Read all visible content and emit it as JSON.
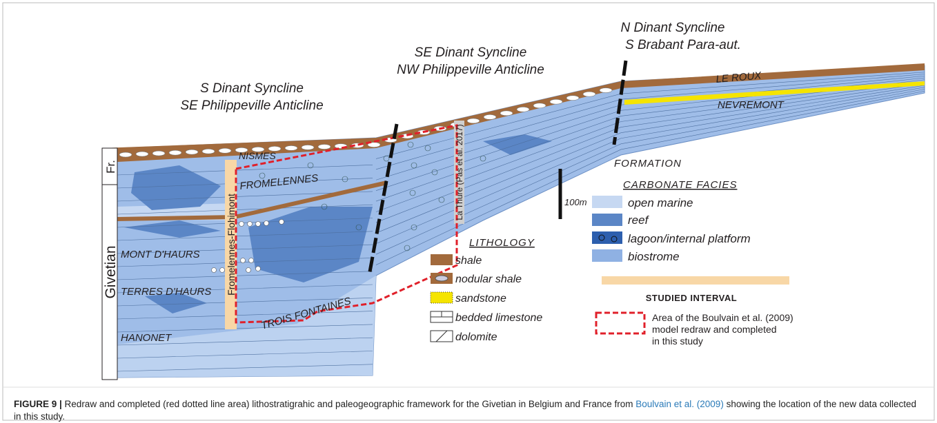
{
  "regions": [
    {
      "line1": "S Dinant Syncline",
      "line2": "SE Philippeville Anticline"
    },
    {
      "line1": "SE Dinant Syncline",
      "line2": "NW Philippeville Anticline"
    },
    {
      "line1": "N Dinant Syncline",
      "line2": "S Brabant Para-aut."
    }
  ],
  "stages": [
    "Fr.",
    "Givetian"
  ],
  "formations": [
    "NISMES",
    "FROMELENNES",
    "MONT D'HAURS",
    "TERRES D'HAURS",
    "HANONET",
    "TROIS FONTAINES",
    "LE ROUX",
    "NEVREMONT"
  ],
  "sections": [
    "Fromelennes-Flohimont",
    "La Thure (Pas et al. 2017)"
  ],
  "scale": "100m",
  "legend": {
    "formation": "FORMATION",
    "facies_title": "CARBONATE FACIES",
    "facies": [
      "open marine",
      "reef",
      "lagoon/internal platform",
      "biostrome"
    ],
    "lithology_title": "LITHOLOGY",
    "lithology": [
      "shale",
      "nodular shale",
      "sandstone",
      "bedded limestone",
      "dolomite"
    ],
    "studied": "STUDIED INTERVAL",
    "area": [
      "Area of the Boulvain et al. (2009)",
      "model redraw and completed",
      "in this study"
    ]
  },
  "caption": {
    "label": "FIGURE 9 |",
    "text1": " Redraw and completed (red dotted line area) lithostratigrahic and paleogeographic framework for the Givetian in Belgium and France from ",
    "link": "Boulvain et al. (2009)",
    "text2": " showing the location of the new data collected in this study."
  }
}
